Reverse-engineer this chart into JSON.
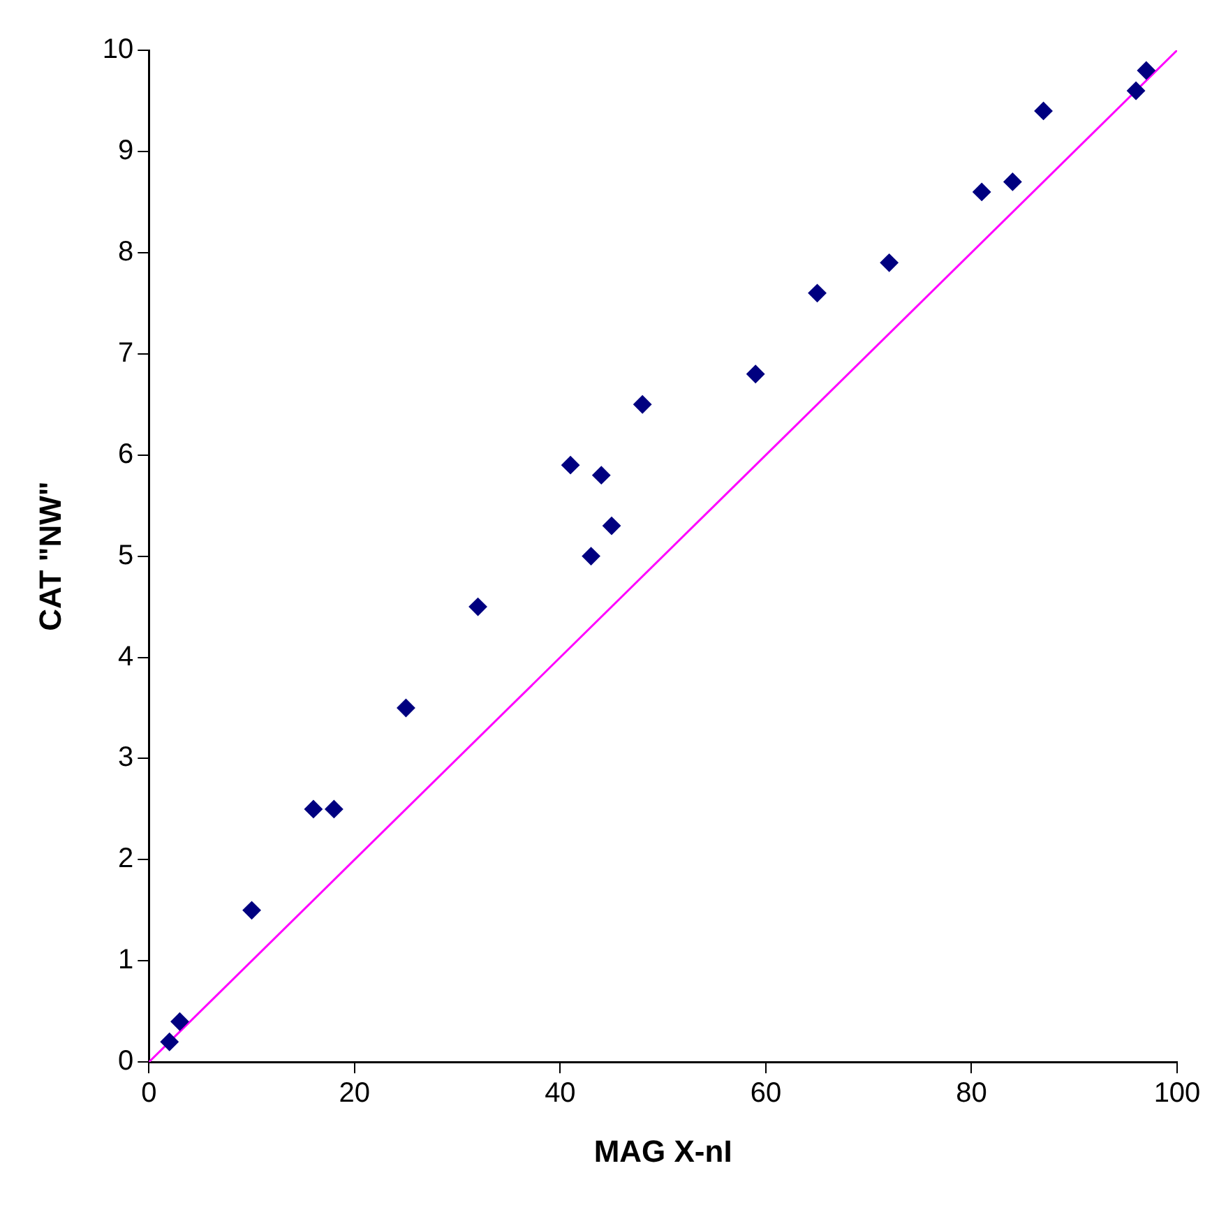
{
  "chart_data": {
    "type": "scatter",
    "xlabel": "MAG X-nI",
    "ylabel": "CAT \"NW\"",
    "xlim": [
      0,
      100
    ],
    "xticks": [
      0,
      20,
      40,
      60,
      80,
      100
    ],
    "ylim": [
      0,
      10
    ],
    "yticks": [
      0,
      1,
      2,
      3,
      4,
      5,
      6,
      7,
      8,
      9,
      10
    ],
    "grid": false,
    "legend": false,
    "marker": "diamond",
    "series": [
      {
        "color": "#000080",
        "x": [
          2,
          3,
          10,
          16,
          18,
          25,
          32,
          41,
          44,
          43,
          45,
          48,
          59,
          65,
          72,
          81,
          84,
          87,
          96,
          97
        ],
        "values": [
          0.2,
          0.4,
          1.5,
          2.5,
          2.5,
          3.5,
          4.5,
          5.9,
          5.8,
          5.0,
          5.3,
          6.5,
          6.8,
          7.6,
          7.9,
          8.6,
          8.7,
          9.4,
          9.6,
          9.8
        ]
      },
      {
        "type": "line",
        "color": "#ff00ff",
        "marker": "none",
        "x": [
          0,
          100
        ],
        "values": [
          0,
          10
        ]
      }
    ]
  }
}
